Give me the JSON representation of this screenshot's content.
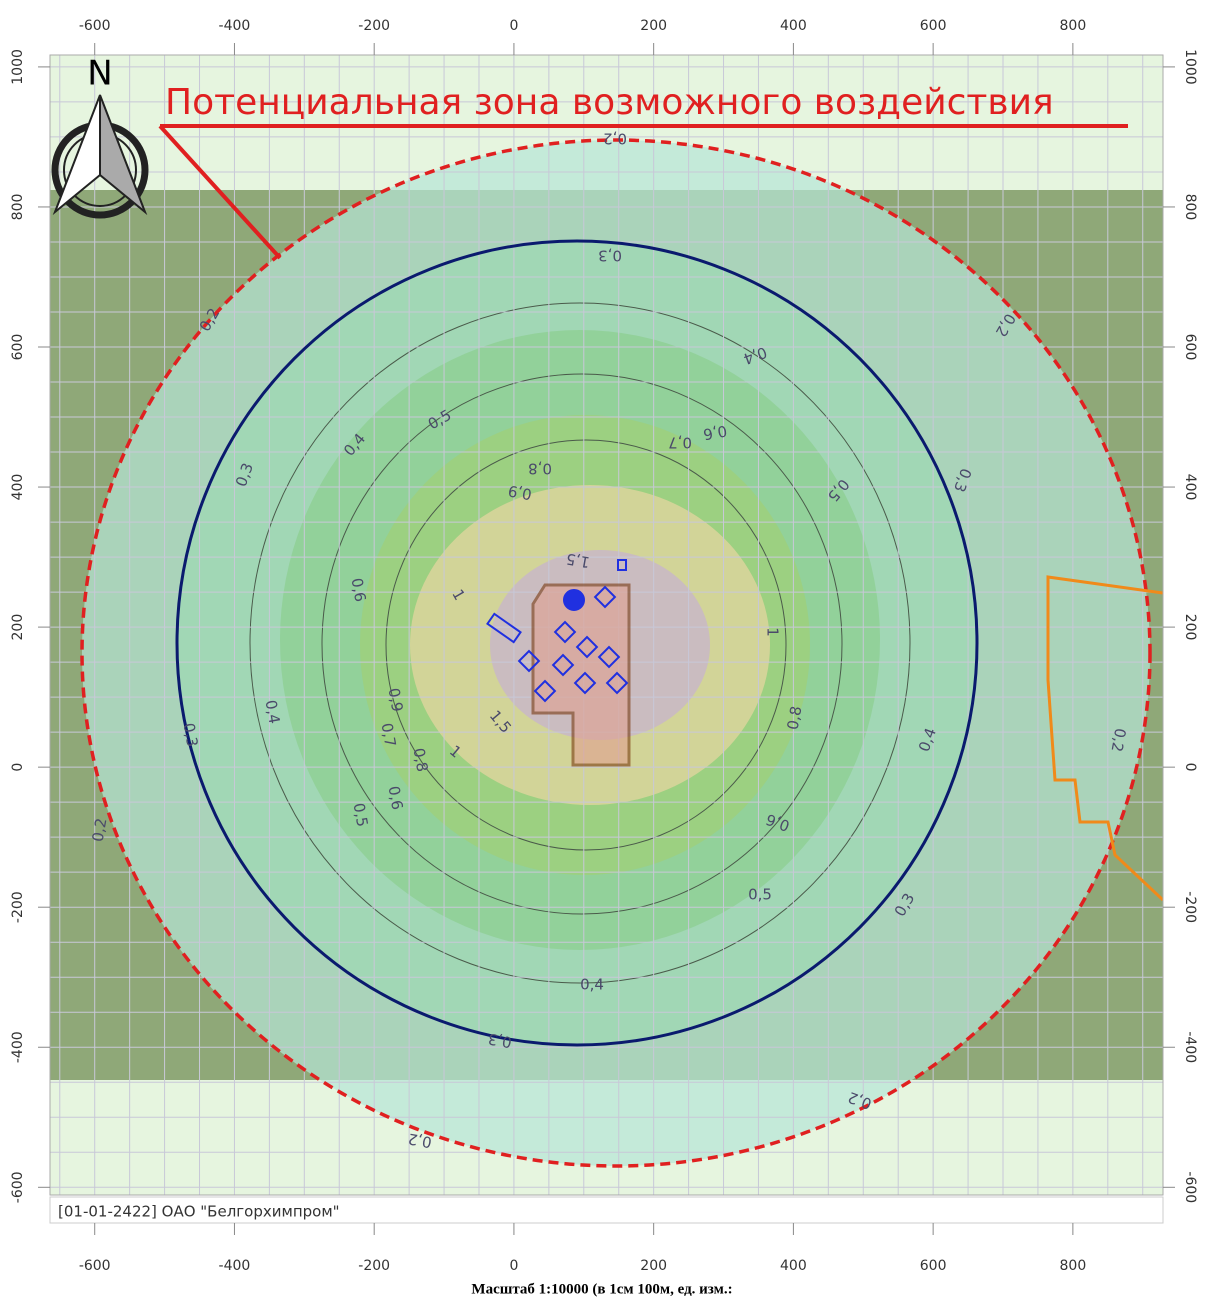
{
  "chart_data": {
    "type": "map",
    "title": "Потенциальная зона возможного воздействия",
    "north": "N",
    "footer": "[01-01-2422] ОАО \"Белгорхимпром\"",
    "caption": "Масштаб 1:10000 (в 1см 100м, ед. изм.:",
    "xlim": [
      -664,
      929
    ],
    "ylim": [
      -611,
      1017
    ],
    "xticks": [
      -600,
      -400,
      -200,
      0,
      200,
      400,
      600,
      800
    ],
    "yticks": [
      1000,
      800,
      600,
      400,
      200,
      0,
      -200,
      -400,
      -600
    ],
    "grid": true,
    "contour_labels": [
      "0,2",
      "0,2",
      "0,2",
      "0,2",
      "0,2",
      "0,2",
      "0,2",
      "0,3",
      "0,3",
      "0,3",
      "0,3",
      "0,3",
      "0,3",
      "0,4",
      "0,4",
      "0,4",
      "0,4",
      "0,4",
      "0,5",
      "0,5",
      "0,5",
      "0,5",
      "0,6",
      "0,6",
      "0,6",
      "0,6",
      "0,7",
      "0,7",
      "0,8",
      "0,8",
      "0,8",
      "0,9",
      "0,9",
      "1",
      "1",
      "1",
      "1,5",
      "1,5"
    ]
  }
}
